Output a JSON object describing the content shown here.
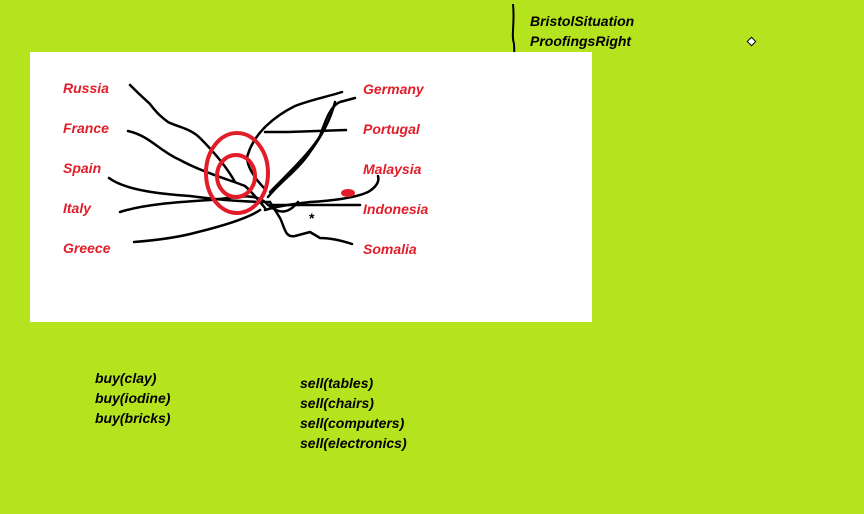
{
  "header": {
    "title_line1": "BristolSituation",
    "title_line2": "ProofingsRight"
  },
  "map": {
    "left_countries": [
      "Russia",
      "France",
      "Spain",
      "Italy",
      "Greece"
    ],
    "right_countries": [
      "Germany",
      "Portugal",
      "Malaysia",
      "Indonesia",
      "Somalia"
    ],
    "asterisk": "*"
  },
  "actions": {
    "buy": [
      "buy(clay)",
      "buy(iodine)",
      "buy(bricks)"
    ],
    "sell": [
      "sell(tables)",
      "sell(chairs)",
      "sell(computers)",
      "sell(electronics)"
    ]
  },
  "colors": {
    "background": "#b5e31e",
    "panel": "#ffffff",
    "country_text": "#e11d2a",
    "rings": "#e11d2a"
  }
}
